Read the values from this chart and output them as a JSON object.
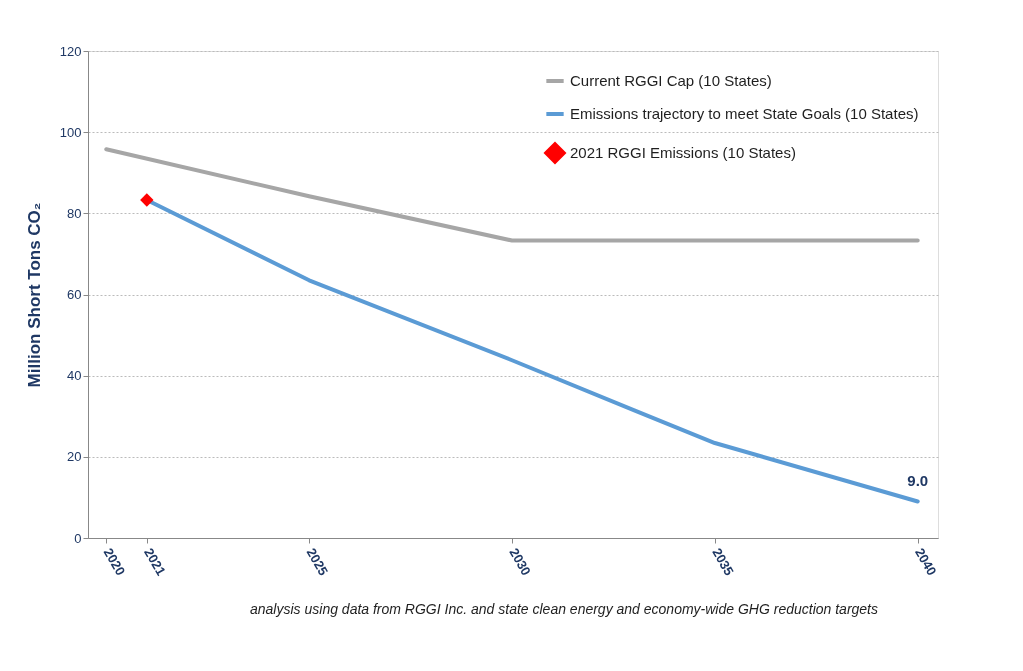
{
  "chart_data": {
    "type": "line",
    "ylabel": "Million Short Tons CO₂",
    "xlim": [
      2019.55,
      2040.5
    ],
    "xticks": [
      2020,
      2021,
      2025,
      2030,
      2035,
      2040
    ],
    "ylim": [
      0,
      120
    ],
    "yticks": [
      0,
      20,
      40,
      60,
      80,
      100,
      120
    ],
    "grid": "y",
    "legend": "top right",
    "line_style": "solid",
    "series": [
      {
        "name": "Current RGGI Cap (10 States)",
        "color": "#a6a6a6",
        "x": [
          2020,
          2025,
          2030,
          2035,
          2040
        ],
        "values": [
          95.8,
          84.2,
          73.3,
          73.3,
          73.3
        ]
      },
      {
        "name": "Emissions trajectory to meet State Goals (10 States)",
        "color": "#5b9bd5",
        "x": [
          2021,
          2025,
          2030,
          2033,
          2035,
          2040
        ],
        "values": [
          83.3,
          63.5,
          43.8,
          31.5,
          23.4,
          9.0
        ],
        "value_labels": [
          null,
          null,
          null,
          null,
          null,
          "9.0"
        ]
      },
      {
        "name": "2021 RGGI Emissions (10 States)",
        "type": "scatter",
        "color": "#ff0000",
        "x": [
          2021
        ],
        "values": [
          83.3
        ],
        "marker": "diamond"
      }
    ],
    "annotations": [
      "analysis using data from RGGI Inc. and state clean energy and economy-wide GHG reduction targets"
    ]
  }
}
